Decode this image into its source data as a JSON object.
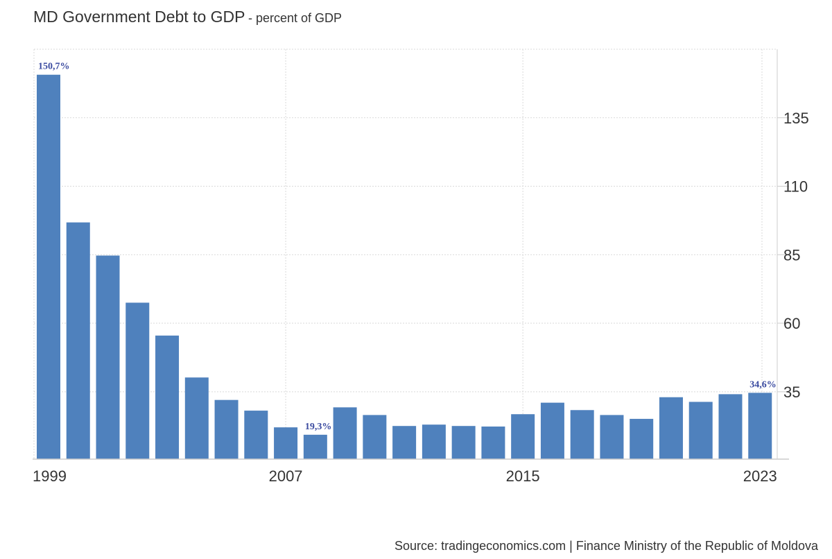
{
  "title": "MD Government Debt to GDP",
  "subtitle": "- percent of GDP",
  "source": "Source: tradingeconomics.com | Finance Ministry of the Republic of Moldova",
  "colors": {
    "bar": "#4f81bd",
    "grid": "#d9d9d9",
    "axis": "#cccccc",
    "label": "#3b4ba0",
    "text": "#333333"
  },
  "chart_data": {
    "type": "bar",
    "categories": [
      "1999",
      "2000",
      "2001",
      "2002",
      "2003",
      "2004",
      "2005",
      "2006",
      "2007",
      "2008",
      "2009",
      "2010",
      "2011",
      "2012",
      "2013",
      "2014",
      "2015",
      "2016",
      "2017",
      "2018",
      "2019",
      "2020",
      "2021",
      "2022",
      "2023"
    ],
    "values": [
      150.7,
      96.8,
      84.7,
      67.5,
      55.5,
      40.2,
      32.0,
      28.1,
      22.0,
      19.3,
      29.3,
      26.5,
      22.5,
      23.0,
      22.5,
      22.3,
      26.8,
      31.0,
      28.3,
      26.5,
      25.1,
      33.0,
      31.3,
      34.1,
      34.6
    ],
    "data_labels": [
      {
        "index": 0,
        "text": "150,7%"
      },
      {
        "index": 9,
        "text": "19,3%"
      },
      {
        "index": 24,
        "text": "34,6%"
      }
    ],
    "x_ticks": [
      "1999",
      "2007",
      "2015",
      "2023"
    ],
    "y_ticks": [
      35,
      60,
      85,
      110,
      135
    ],
    "ylim": [
      10.4,
      160
    ],
    "axis_position": "right",
    "grid": true
  }
}
